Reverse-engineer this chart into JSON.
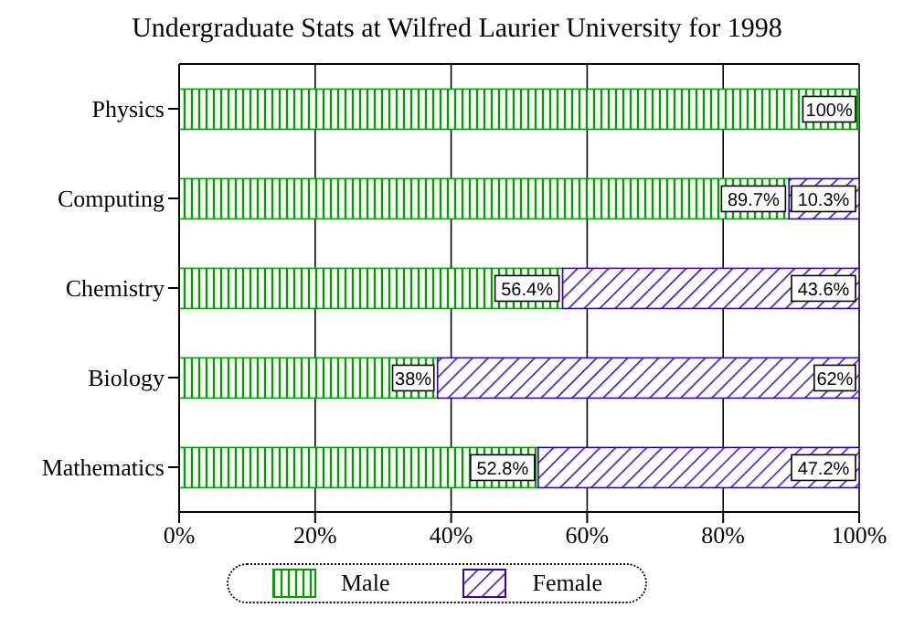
{
  "chart_data": {
    "type": "bar",
    "orientation": "horizontal",
    "stacked": true,
    "title": "Undergraduate Stats at Wilfred Laurier University for 1998",
    "categories": [
      "Physics",
      "Computing",
      "Chemistry",
      "Biology",
      "Mathematics"
    ],
    "series": [
      {
        "name": "Male",
        "color": "#00a000",
        "values": [
          100,
          89.7,
          56.4,
          38,
          52.8
        ],
        "value_labels": [
          "100%",
          "89.7%",
          "56.4%",
          "38%",
          "52.8%"
        ]
      },
      {
        "name": "Female",
        "color": "#3c00b4",
        "values": [
          0,
          10.3,
          43.6,
          62,
          47.2
        ],
        "value_labels": [
          null,
          "10.3%",
          "43.6%",
          "62%",
          "47.2%"
        ]
      }
    ],
    "xlim": [
      0,
      100
    ],
    "xticks": [
      {
        "value": 0,
        "label": "0%"
      },
      {
        "value": 20,
        "label": "20%"
      },
      {
        "value": 40,
        "label": "40%"
      },
      {
        "value": 60,
        "label": "60%"
      },
      {
        "value": 80,
        "label": "80%"
      },
      {
        "value": 100,
        "label": "100%"
      }
    ],
    "grid": "x",
    "legend": "bottom"
  }
}
